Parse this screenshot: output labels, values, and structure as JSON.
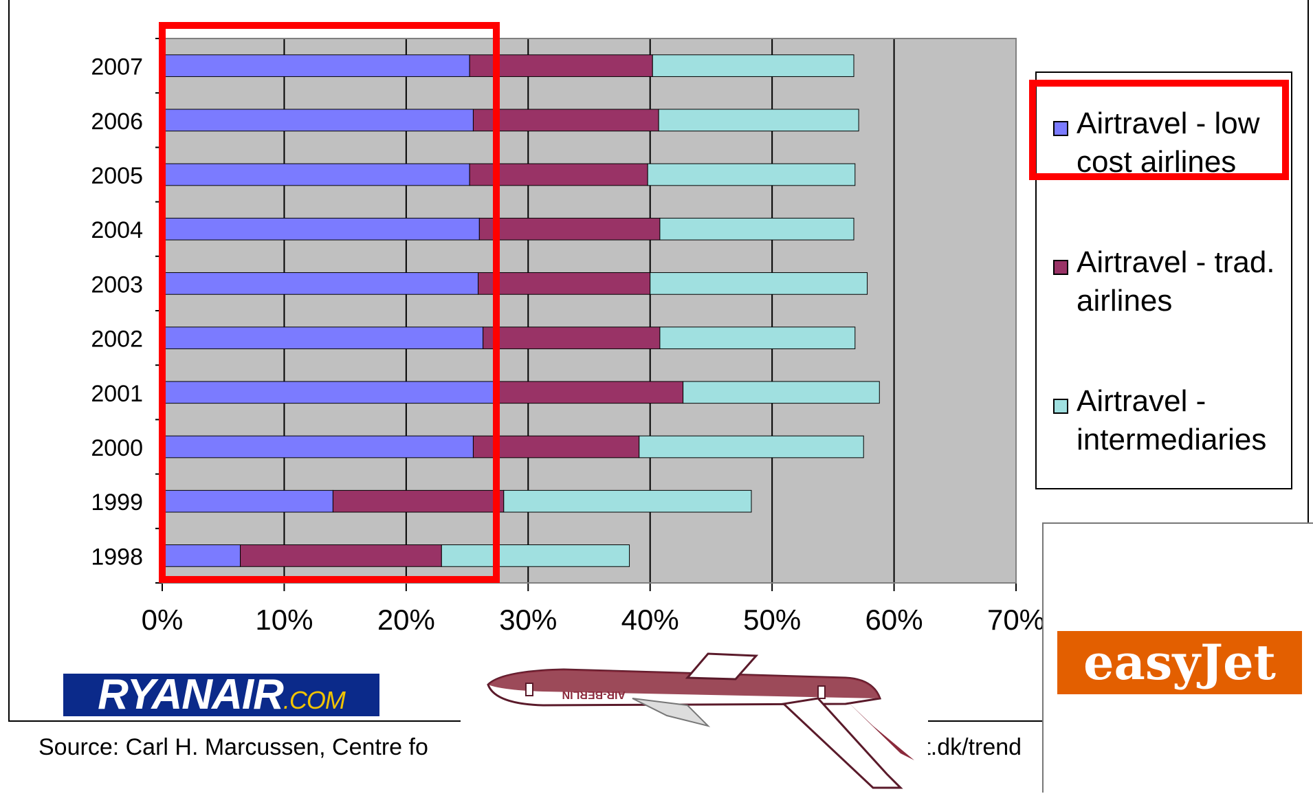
{
  "chart_data": {
    "type": "bar",
    "orientation": "horizontal",
    "stacked": true,
    "categories": [
      "2007",
      "2006",
      "2005",
      "2004",
      "2003",
      "2002",
      "2001",
      "2000",
      "1999",
      "1998"
    ],
    "series": [
      {
        "name": "Airtravel - low cost airlines",
        "color": "#7b7bff",
        "values": [
          25.2,
          25.5,
          25.2,
          26.0,
          25.9,
          26.3,
          27.2,
          25.5,
          14.0,
          6.4
        ]
      },
      {
        "name": "Airtravel - trad. airlines",
        "color": "#993366",
        "values": [
          15.0,
          15.2,
          14.6,
          14.8,
          14.1,
          14.5,
          15.5,
          13.6,
          14.0,
          16.5
        ]
      },
      {
        "name": "Airtravel - intermediaries",
        "color": "#a0e0e0",
        "values": [
          16.5,
          16.4,
          17.0,
          15.9,
          17.8,
          16.0,
          16.1,
          18.4,
          20.3,
          15.4
        ]
      }
    ],
    "x_ticks": [
      "0%",
      "10%",
      "20%",
      "30%",
      "40%",
      "50%",
      "60%",
      "70%"
    ],
    "xlim": [
      0,
      70
    ],
    "grid": true,
    "legend": "right",
    "plot_background": "#c0c0c0"
  },
  "source": "Source: Carl H. Marcussen, Centre fo",
  "source_tail": "crt.dk/trend",
  "logos": {
    "ryanair_main": "RYANAIR",
    "ryanair_com": ".COM",
    "easyjet": "easyJet",
    "airberlin": "AIR-BERLIN"
  },
  "colors": {
    "highlight": "#ff0000"
  }
}
